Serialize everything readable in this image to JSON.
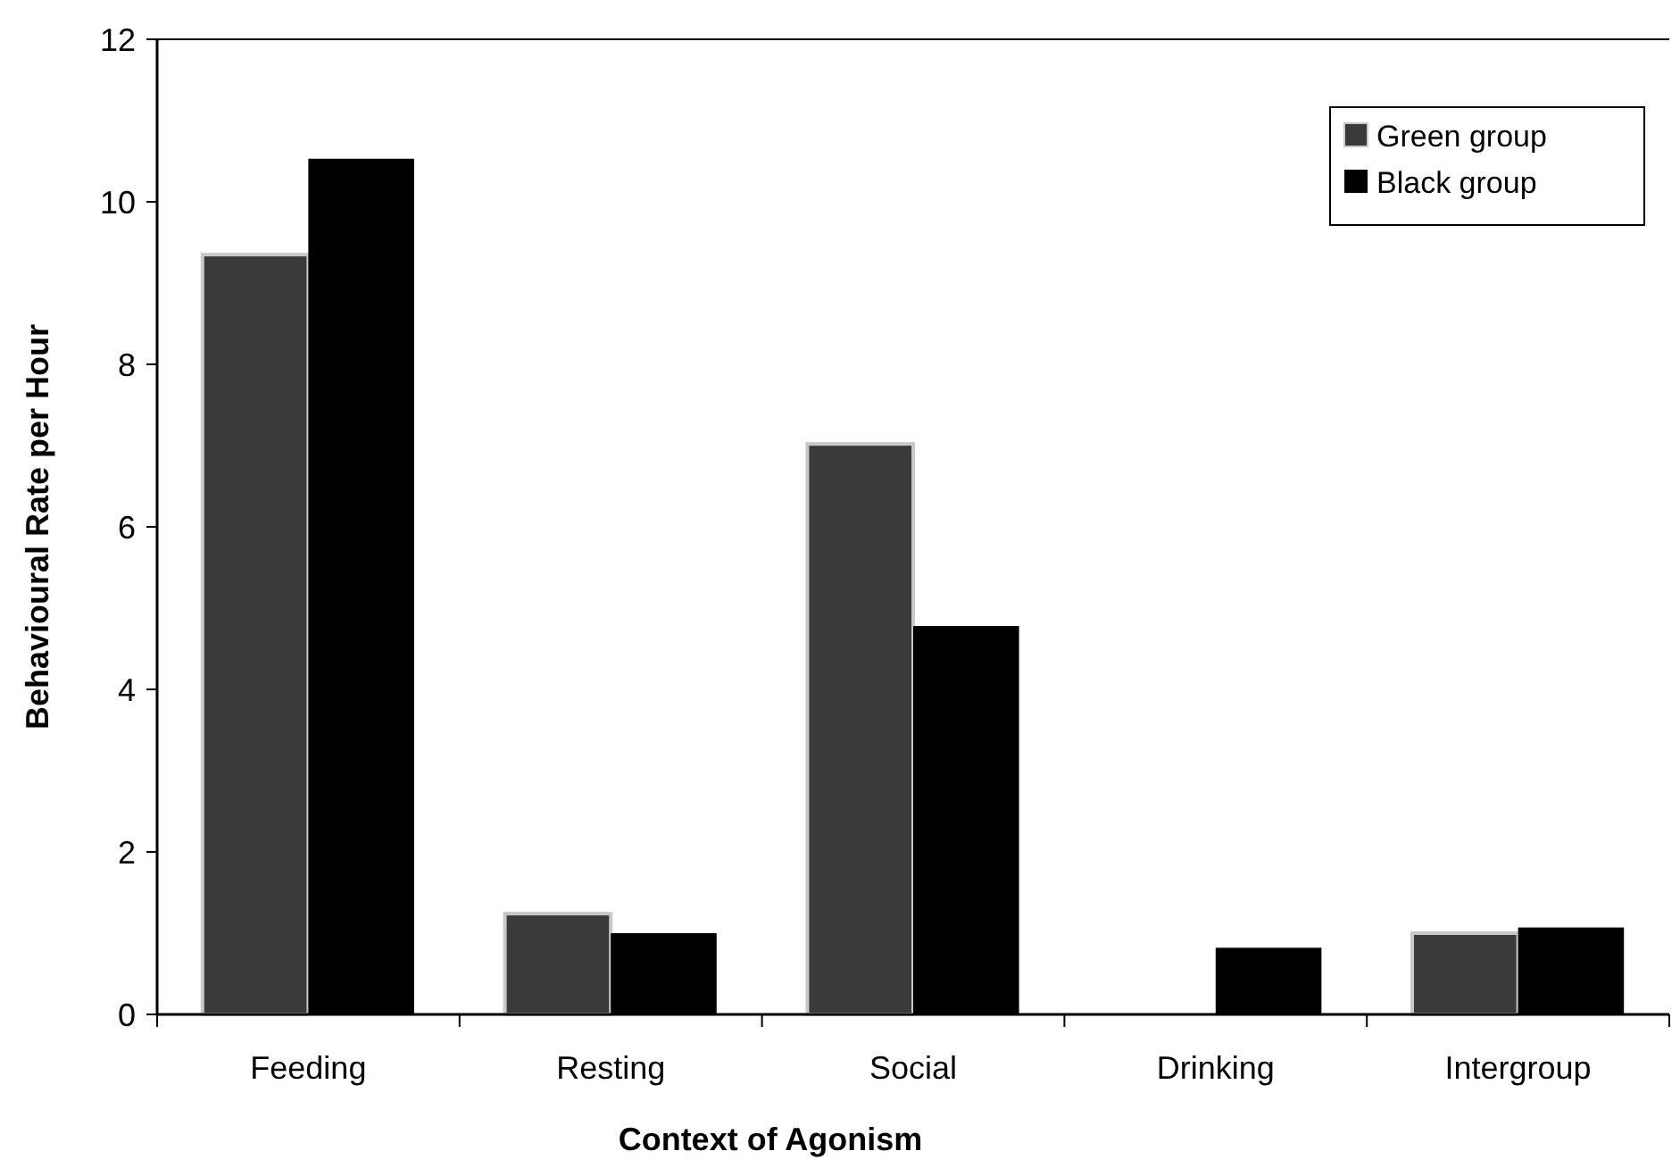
{
  "chart_data": {
    "type": "bar",
    "xlabel": "Context of Agonism",
    "ylabel": "Behavioural Rate per Hour",
    "categories": [
      "Feeding",
      "Resting",
      "Social",
      "Drinking",
      "Intergroup"
    ],
    "series": [
      {
        "name": "Green group",
        "color": "#3a3a3a",
        "values": [
          9.35,
          1.24,
          7.02,
          0,
          1.0
        ]
      },
      {
        "name": "Black group",
        "color": "#000000",
        "values": [
          10.53,
          1.0,
          4.78,
          0.82,
          1.07
        ]
      }
    ],
    "ylim": [
      0,
      12
    ],
    "yticks": [
      0,
      2,
      4,
      6,
      8,
      10,
      12
    ],
    "grid": false,
    "legend": "top right"
  }
}
